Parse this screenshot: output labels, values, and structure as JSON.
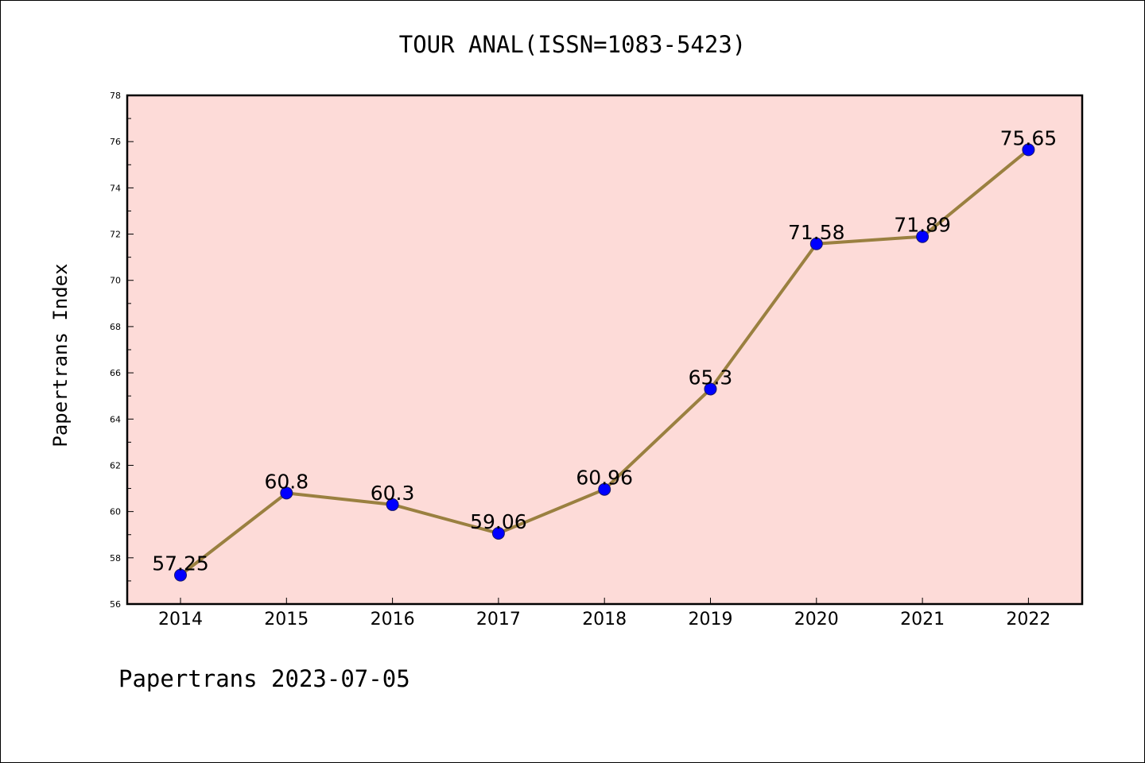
{
  "chart_data": {
    "type": "line",
    "title": "TOUR ANAL(ISSN=1083-5423)",
    "xlabel": "",
    "ylabel": "Papertrans Index",
    "x": [
      "2014",
      "2015",
      "2016",
      "2017",
      "2018",
      "2019",
      "2020",
      "2021",
      "2022"
    ],
    "series": [
      {
        "values": [
          57.25,
          60.8,
          60.3,
          59.06,
          60.96,
          65.3,
          71.58,
          71.89,
          75.65
        ],
        "labels": [
          "57.25",
          "60.8",
          "60.3",
          "59.06",
          "60.96",
          "65.3",
          "71.58",
          "71.89",
          "75.65"
        ]
      }
    ],
    "ylim": [
      56,
      78
    ],
    "yticks": [
      "56",
      "58",
      "60",
      "62",
      "64",
      "66",
      "68",
      "70",
      "72",
      "74",
      "76",
      "78"
    ],
    "grid": false,
    "legend": "none",
    "colors": {
      "plot_background": "#fddbd8",
      "line": "#9a8040",
      "marker": "#0000ff",
      "axes": "#000000"
    }
  },
  "footer": {
    "text": "Papertrans 2023-07-05"
  }
}
